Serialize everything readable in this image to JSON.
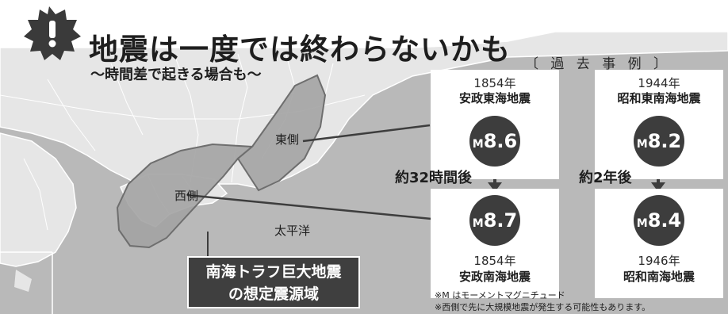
{
  "headline": {
    "title": "地震は一度では終わらないかも",
    "subtitle": "〜時間差で起きる場合も〜",
    "icon": "exclamation-burst-icon"
  },
  "map": {
    "east_label": "東側",
    "west_label": "西側",
    "ocean_label": "太平洋",
    "caption_line1": "南海トラフ巨大地震",
    "caption_line2": "の想定震源域"
  },
  "examples": {
    "section_title": "〔 過 去 事 例 〕",
    "pair1": {
      "top": {
        "year": "1854年",
        "name": "安政東海地震",
        "mag_prefix": "M",
        "mag_value": "8.6"
      },
      "interval": "約32時間後",
      "bottom": {
        "year": "1854年",
        "name": "安政南海地震",
        "mag_prefix": "M",
        "mag_value": "8.7"
      }
    },
    "pair2": {
      "top": {
        "year": "1944年",
        "name": "昭和東南海地震",
        "mag_prefix": "M",
        "mag_value": "8.2"
      },
      "interval": "約2年後",
      "bottom": {
        "year": "1946年",
        "name": "昭和南海地震",
        "mag_prefix": "M",
        "mag_value": "8.4"
      }
    }
  },
  "notes": {
    "line1": "※M はモーメントマグニチュード",
    "line2": "※西側で先に大規模地震が発生する可能性もあります。"
  },
  "colors": {
    "sea": "#b9b9b9",
    "land": "#e6e6e6",
    "zone": "#a3a3a3",
    "circle": "#3d3d3d",
    "card": "#ffffff"
  }
}
